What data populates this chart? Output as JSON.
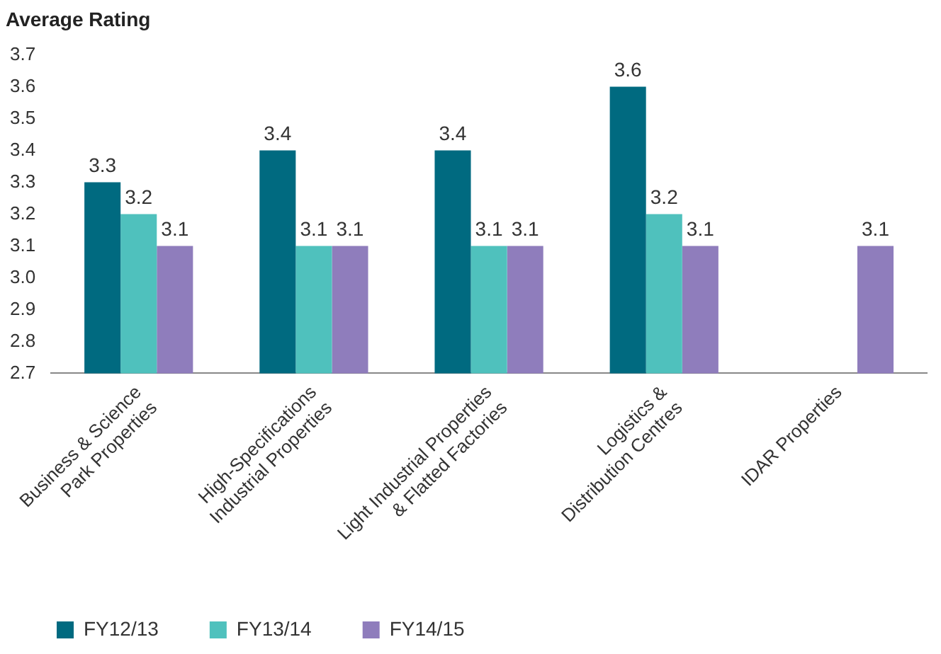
{
  "chart_data": {
    "type": "bar",
    "title": "Average Rating",
    "categories": [
      "Business & Science\nPark Properties",
      "High-Specifications\nIndustrial Properties",
      "Light Industrial Properties\n& Flatted Factories",
      "Logistics &\nDistribution Centres",
      "IDAR Properties"
    ],
    "series": [
      {
        "name": "FY12/13",
        "color": "#006a80",
        "values": [
          3.3,
          3.4,
          3.4,
          3.6,
          null
        ]
      },
      {
        "name": "FY13/14",
        "color": "#4fc1bd",
        "values": [
          3.2,
          3.1,
          3.1,
          3.2,
          null
        ]
      },
      {
        "name": "FY14/15",
        "color": "#8f7dbc",
        "values": [
          3.1,
          3.1,
          3.1,
          3.1,
          3.1
        ]
      }
    ],
    "ylim": [
      2.7,
      3.7
    ],
    "yticks": [
      2.7,
      2.8,
      2.9,
      {
        "value": 3,
        "label": "3.0"
      },
      3.1,
      3.2,
      3.3,
      3.4,
      3.5,
      3.6,
      3.7
    ],
    "grid": false,
    "legend": "bottom left",
    "data_labels": true
  }
}
